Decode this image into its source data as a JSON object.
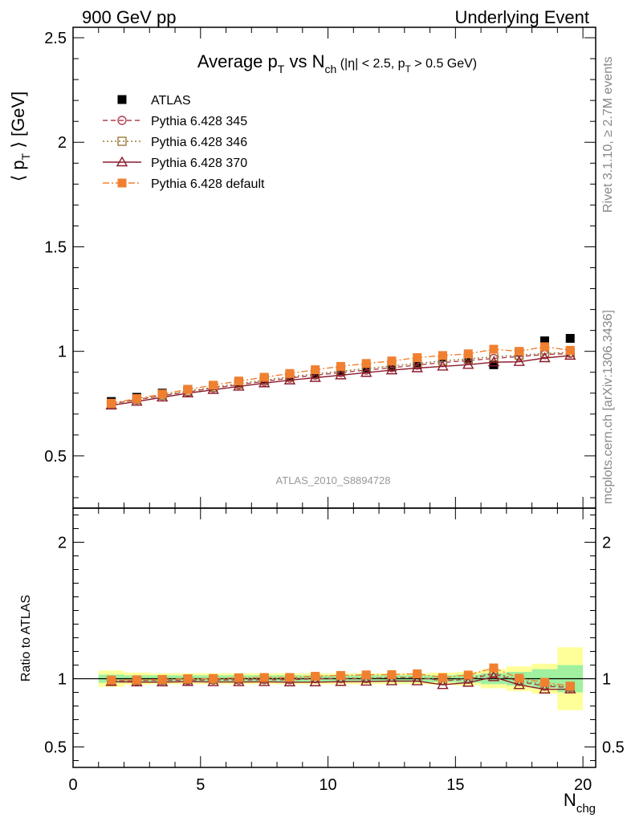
{
  "header": {
    "left": "900 GeV pp",
    "right": "Underlying Event"
  },
  "side_labels": {
    "rivet": "Rivet 3.1.10, ≥ 2.7M events",
    "mcplots": "mcplots.cern.ch [arXiv:1306.3436]"
  },
  "watermark": "ATLAS_2010_S8894728",
  "chart_data": [
    {
      "type": "scatter",
      "title": "Average pT vs Nch (|η| < 2.5, pT > 0.5 GeV)",
      "title_parts": {
        "a": "Average p",
        "b": "T",
        "c": " vs N",
        "d": "ch",
        "e": " (|η| < 2.5, p",
        "f": "T",
        "g": " > 0.5 GeV)"
      },
      "ylabel": "⟨ pT ⟩ [GeV]",
      "ylabel_parts": {
        "a": "⟨ p",
        "b": "T",
        "c": " ⟩ [GeV]"
      },
      "xlim": [
        0,
        20.5
      ],
      "ylim": [
        0.25,
        2.55
      ],
      "yticks": [
        "0.5",
        "1",
        "1.5",
        "2",
        "2.5"
      ],
      "ytick_values": [
        0.5,
        1,
        1.5,
        2,
        2.5
      ],
      "legend_position": "top-left",
      "x": [
        1.5,
        2.5,
        3.5,
        4.5,
        5.5,
        6.5,
        7.5,
        8.5,
        9.5,
        10.5,
        11.5,
        12.5,
        13.5,
        14.5,
        15.5,
        16.5,
        17.5,
        18.5,
        19.5
      ],
      "series": [
        {
          "name": "ATLAS",
          "color": "#000000",
          "marker": "square-filled",
          "line": "none",
          "values": [
            0.76,
            0.78,
            0.8,
            0.818,
            0.836,
            0.852,
            0.868,
            0.886,
            0.896,
            0.906,
            0.916,
            0.926,
            0.936,
            0.972,
            0.962,
            0.936,
            0.996,
            1.05,
            1.062
          ]
        },
        {
          "name": "Pythia 6.428 345",
          "color": "#b04050",
          "marker": "circle-open",
          "line": "dashed",
          "values": [
            0.748,
            0.768,
            0.788,
            0.806,
            0.824,
            0.84,
            0.856,
            0.872,
            0.886,
            0.898,
            0.91,
            0.922,
            0.934,
            0.946,
            0.956,
            0.966,
            0.975,
            0.984,
            0.99
          ]
        },
        {
          "name": "Pythia 6.428 346",
          "color": "#9a7a3a",
          "marker": "square-open",
          "line": "dotted",
          "values": [
            0.75,
            0.77,
            0.79,
            0.81,
            0.828,
            0.846,
            0.862,
            0.878,
            0.892,
            0.905,
            0.918,
            0.93,
            0.942,
            0.954,
            0.964,
            0.974,
            0.982,
            0.99,
            0.995
          ]
        },
        {
          "name": "Pythia 6.428 370",
          "color": "#8b1a2b",
          "marker": "triangle-open",
          "line": "solid",
          "values": [
            0.742,
            0.76,
            0.78,
            0.8,
            0.816,
            0.832,
            0.848,
            0.862,
            0.874,
            0.886,
            0.898,
            0.91,
            0.92,
            0.928,
            0.936,
            0.948,
            0.95,
            0.968,
            0.98
          ]
        },
        {
          "name": "Pythia 6.428 default",
          "color": "#f08030",
          "marker": "square-filled",
          "line": "dashdot",
          "values": [
            0.752,
            0.774,
            0.796,
            0.818,
            0.838,
            0.858,
            0.876,
            0.894,
            0.912,
            0.928,
            0.942,
            0.954,
            0.97,
            0.98,
            0.988,
            1.01,
            1.0,
            1.022,
            1.005
          ]
        }
      ]
    },
    {
      "type": "scatter",
      "ylabel": "Ratio to ATLAS",
      "xlabel": "Nchg",
      "xlabel_parts": {
        "a": "N",
        "b": "chg"
      },
      "xlim": [
        0,
        20.5
      ],
      "ylim": [
        0.35,
        2.25
      ],
      "xticks": [
        "0",
        "5",
        "10",
        "15",
        "20"
      ],
      "xtick_values": [
        0,
        5,
        10,
        15,
        20
      ],
      "yticks": [
        "0.5",
        "1",
        "2"
      ],
      "ytick_values": [
        0.5,
        1,
        2
      ],
      "x_edges": [
        1,
        2,
        3,
        4,
        5,
        6,
        7,
        8,
        9,
        10,
        11,
        12,
        13,
        14,
        15,
        16,
        17,
        18,
        19,
        20
      ],
      "band_green_halfwidth": [
        0.03,
        0.025,
        0.025,
        0.025,
        0.025,
        0.025,
        0.025,
        0.025,
        0.025,
        0.025,
        0.025,
        0.025,
        0.025,
        0.025,
        0.03,
        0.04,
        0.05,
        0.07,
        0.1
      ],
      "band_yellow_halfwidth": [
        0.06,
        0.045,
        0.04,
        0.04,
        0.04,
        0.04,
        0.04,
        0.04,
        0.04,
        0.04,
        0.04,
        0.04,
        0.04,
        0.045,
        0.05,
        0.07,
        0.09,
        0.11,
        0.23
      ],
      "band_colors": {
        "green": "#a0f0a0",
        "yellow": "#ffff99"
      },
      "series": [
        {
          "name": "Pythia 6.428 345",
          "color": "#b04050",
          "marker": "circle-open",
          "line": "dashed",
          "values": [
            0.985,
            0.985,
            0.988,
            0.988,
            0.99,
            0.99,
            0.992,
            0.992,
            1.0,
            1.0,
            1.0,
            1.01,
            1.01,
            0.985,
            0.995,
            1.035,
            0.98,
            0.945,
            0.935
          ]
        },
        {
          "name": "Pythia 6.428 346",
          "color": "#9a7a3a",
          "marker": "square-open",
          "line": "dotted",
          "values": [
            0.988,
            0.99,
            0.99,
            0.995,
            0.995,
            1.0,
            1.0,
            1.0,
            1.005,
            1.005,
            1.005,
            1.01,
            1.01,
            0.99,
            1.0,
            1.045,
            0.99,
            0.955,
            0.94
          ]
        },
        {
          "name": "Pythia 6.428 370",
          "color": "#8b1a2b",
          "marker": "triangle-open",
          "line": "solid",
          "values": [
            0.978,
            0.975,
            0.975,
            0.978,
            0.976,
            0.976,
            0.977,
            0.975,
            0.975,
            0.978,
            0.98,
            0.983,
            0.983,
            0.955,
            0.972,
            1.013,
            0.955,
            0.922,
            0.923
          ]
        },
        {
          "name": "Pythia 6.428 default",
          "color": "#f08030",
          "marker": "square-filled",
          "line": "dashdot",
          "values": [
            0.99,
            0.992,
            0.995,
            1.0,
            1.002,
            1.007,
            1.009,
            1.009,
            1.018,
            1.024,
            1.028,
            1.03,
            1.036,
            1.008,
            1.027,
            1.079,
            1.004,
            0.973,
            0.946
          ]
        }
      ]
    }
  ]
}
